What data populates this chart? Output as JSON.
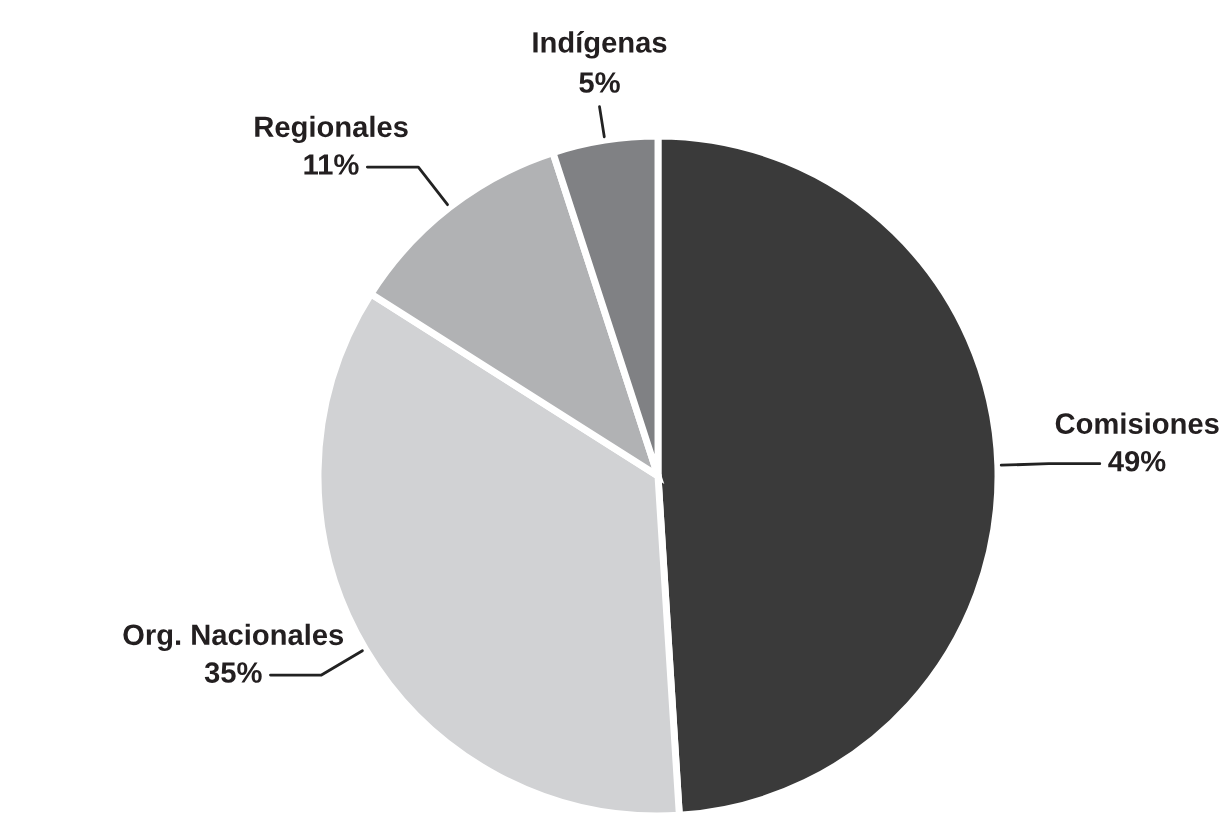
{
  "chart_data": {
    "type": "pie",
    "categories": [
      "Comisiones",
      "Org. Nacionales",
      "Regionales",
      "Indígenas"
    ],
    "values": [
      49,
      35,
      11,
      5
    ],
    "colors": [
      "#3a3a3a",
      "#d1d2d4",
      "#b1b2b4",
      "#808184"
    ],
    "value_labels": [
      "49%",
      "35%",
      "11%",
      "5%"
    ]
  }
}
